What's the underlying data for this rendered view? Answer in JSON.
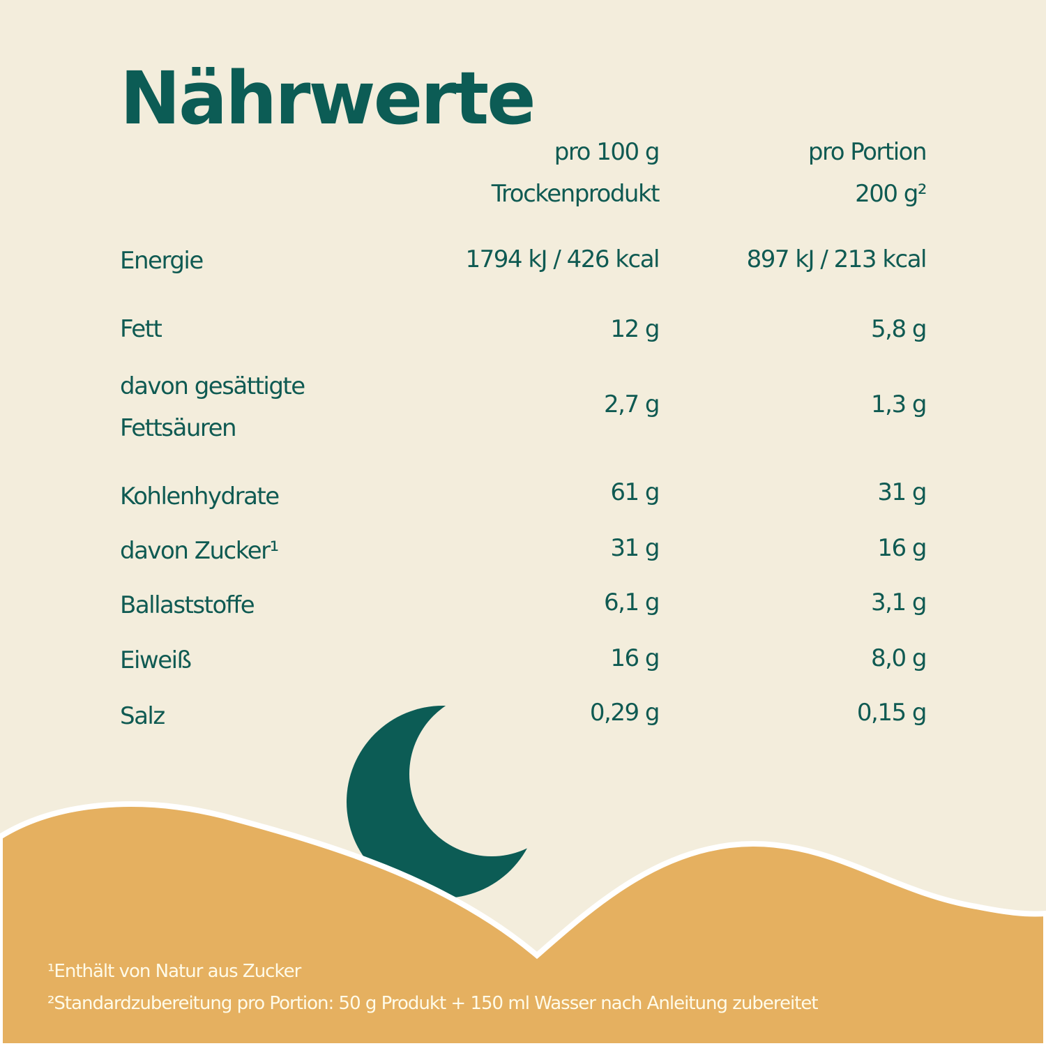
{
  "title": "Nährwerte",
  "columns": [
    {
      "line1": "pro 100 g",
      "line2": "Trockenprodukt"
    },
    {
      "line1": "pro Portion",
      "line2": "200 g²"
    }
  ],
  "rows": [
    {
      "label": "Energie",
      "per100": "1794 kJ / 426 kcal",
      "portion": "897 kJ / 213 kcal"
    },
    {
      "label": "Fett",
      "per100": "12 g",
      "portion": "5,8 g"
    },
    {
      "label": "davon gesättigte",
      "label2": "Fettsäuren",
      "per100": "2,7 g",
      "portion": "1,3 g"
    },
    {
      "label": "Kohlenhydrate",
      "per100": "61 g",
      "portion": "31 g"
    },
    {
      "label": "davon Zucker¹",
      "per100": "31 g",
      "portion": "16 g"
    },
    {
      "label": "Ballaststoffe",
      "per100": "6,1 g",
      "portion": "3,1 g"
    },
    {
      "label": "Eiweiß",
      "per100": "16 g",
      "portion": "8,0 g"
    },
    {
      "label": "Salz",
      "per100": "0,29 g",
      "portion": "0,15 g"
    }
  ],
  "footnotes": [
    "¹Enthält von Natur aus Zucker",
    "²Standardzubereitung pro Portion: 50 g Produkt + 150 ml Wasser nach Anleitung zubereitet"
  ],
  "colors": {
    "background": "#f3eddc",
    "text": "#0c5c55",
    "sand": "#e5b060",
    "footnote": "#fffbe9"
  },
  "icons": [
    "moon-icon"
  ]
}
